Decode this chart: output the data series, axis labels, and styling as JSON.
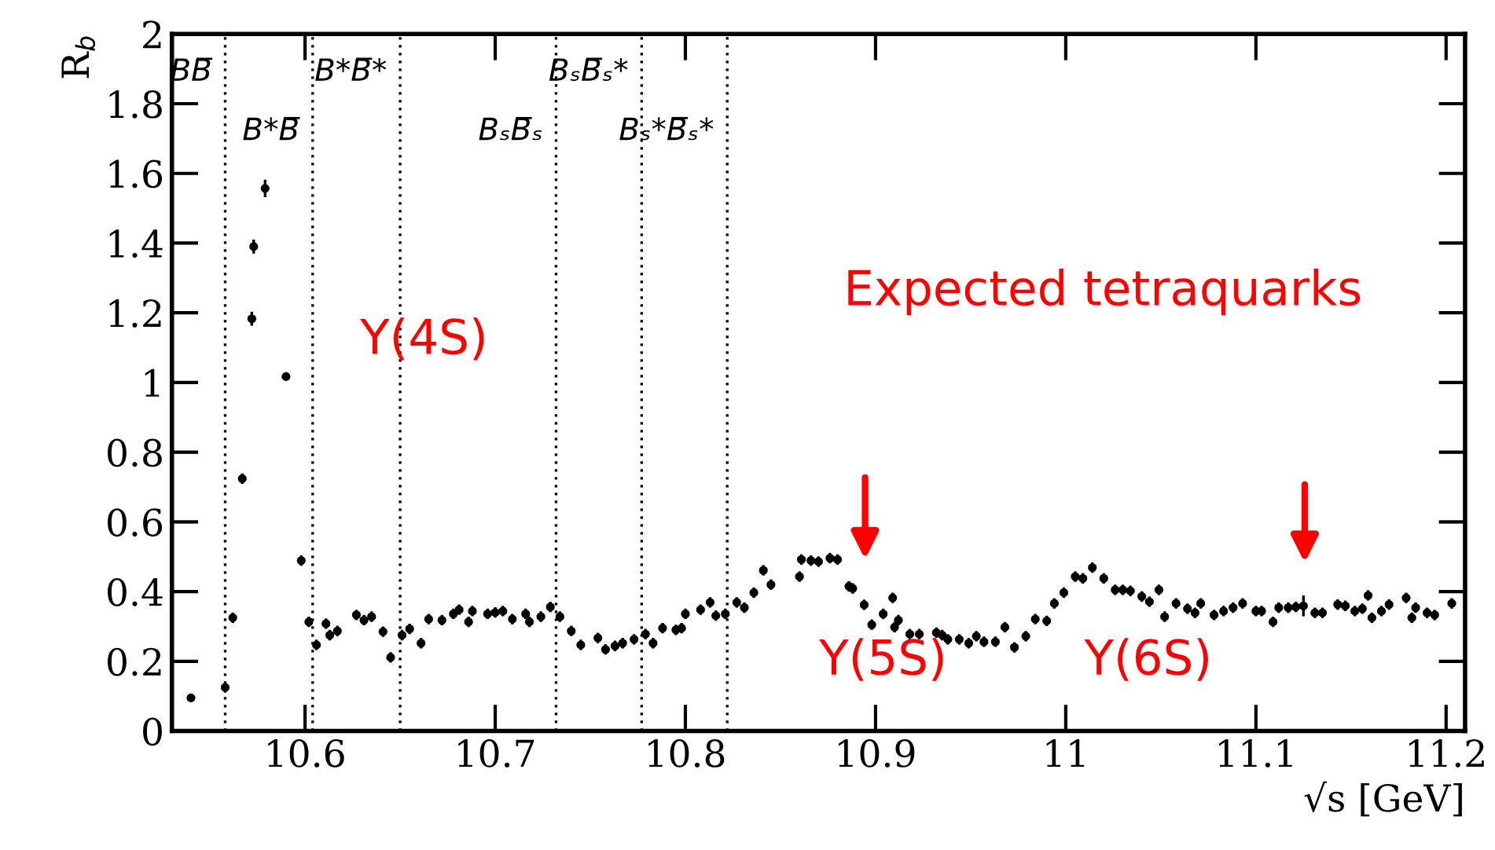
{
  "chart_data": {
    "type": "scatter",
    "xlabel": "√s [GeV]",
    "ylabel": "R$_{b}$",
    "xlim": [
      10.53,
      11.21
    ],
    "ylim": [
      0,
      2
    ],
    "xticks": [
      10.6,
      10.7,
      10.8,
      10.9,
      11,
      11.1,
      11.2
    ],
    "yticks": [
      0,
      0.2,
      0.4,
      0.6,
      0.8,
      1,
      1.2,
      1.4,
      1.6,
      1.8,
      2
    ],
    "grid": false,
    "marker": "circle",
    "series": [
      {
        "color": "#000000",
        "x": [
          10.54,
          10.558,
          10.562,
          10.567,
          10.572,
          10.573,
          10.579,
          10.59,
          10.598,
          10.602,
          10.606,
          10.611,
          10.613,
          10.617,
          10.627,
          10.631,
          10.635,
          10.641,
          10.645,
          10.651,
          10.655,
          10.661,
          10.665,
          10.672,
          10.678,
          10.681,
          10.686,
          10.688,
          10.696,
          10.7,
          10.704,
          10.709,
          10.716,
          10.718,
          10.724,
          10.729,
          10.734,
          10.74,
          10.745,
          10.754,
          10.758,
          10.763,
          10.767,
          10.773,
          10.779,
          10.783,
          10.788,
          10.795,
          10.798,
          10.8,
          10.808,
          10.813,
          10.816,
          10.821,
          10.827,
          10.831,
          10.836,
          10.841,
          10.845,
          10.86,
          10.861,
          10.866,
          10.87,
          10.876,
          10.88,
          10.886,
          10.888,
          10.894,
          10.898,
          10.904,
          10.909,
          10.91,
          10.912,
          10.918,
          10.923,
          10.932,
          10.935,
          10.938,
          10.944,
          10.949,
          10.953,
          10.957,
          10.963,
          10.968,
          10.973,
          10.979,
          10.984,
          10.99,
          10.994,
          10.999,
          11.005,
          11.009,
          11.014,
          11.02,
          11.026,
          11.03,
          11.034,
          11.04,
          11.044,
          11.049,
          11.052,
          11.058,
          11.064,
          11.068,
          11.071,
          11.078,
          11.083,
          11.088,
          11.093,
          11.1,
          11.103,
          11.109,
          11.112,
          11.117,
          11.121,
          11.125,
          11.131,
          11.135,
          11.143,
          11.147,
          11.152,
          11.156,
          11.159,
          11.161,
          11.166,
          11.17,
          11.179,
          11.182,
          11.184,
          11.19,
          11.194,
          11.203
        ],
        "values": [
          0.095,
          0.125,
          0.325,
          0.724,
          1.183,
          1.39,
          1.557,
          1.017,
          0.489,
          0.313,
          0.247,
          0.308,
          0.275,
          0.287,
          0.333,
          0.318,
          0.328,
          0.285,
          0.211,
          0.275,
          0.293,
          0.252,
          0.321,
          0.318,
          0.336,
          0.348,
          0.313,
          0.344,
          0.336,
          0.34,
          0.344,
          0.321,
          0.336,
          0.313,
          0.328,
          0.356,
          0.328,
          0.287,
          0.247,
          0.267,
          0.234,
          0.244,
          0.252,
          0.263,
          0.278,
          0.252,
          0.295,
          0.29,
          0.295,
          0.336,
          0.348,
          0.369,
          0.331,
          0.336,
          0.369,
          0.354,
          0.397,
          0.461,
          0.42,
          0.443,
          0.492,
          0.489,
          0.486,
          0.496,
          0.492,
          0.415,
          0.409,
          0.362,
          0.305,
          0.336,
          0.382,
          0.298,
          0.318,
          0.278,
          0.278,
          0.282,
          0.275,
          0.263,
          0.263,
          0.252,
          0.272,
          0.256,
          0.256,
          0.298,
          0.24,
          0.272,
          0.321,
          0.316,
          0.366,
          0.397,
          0.443,
          0.438,
          0.469,
          0.438,
          0.405,
          0.405,
          0.402,
          0.386,
          0.371,
          0.405,
          0.328,
          0.366,
          0.351,
          0.339,
          0.366,
          0.333,
          0.344,
          0.354,
          0.366,
          0.344,
          0.344,
          0.313,
          0.354,
          0.354,
          0.356,
          0.359,
          0.339,
          0.339,
          0.363,
          0.359,
          0.344,
          0.351,
          0.389,
          0.325,
          0.344,
          0.363,
          0.382,
          0.325,
          0.354,
          0.339,
          0.333,
          0.366
        ],
        "errors": [
          0.01,
          0.015,
          0.015,
          0.015,
          0.02,
          0.02,
          0.025,
          0.01,
          0.015,
          0.015,
          0.015,
          0.015,
          0.015,
          0.015,
          0.015,
          0.015,
          0.015,
          0.015,
          0.015,
          0.015,
          0.015,
          0.015,
          0.015,
          0.015,
          0.015,
          0.015,
          0.015,
          0.015,
          0.015,
          0.015,
          0.015,
          0.015,
          0.015,
          0.015,
          0.015,
          0.015,
          0.015,
          0.015,
          0.015,
          0.015,
          0.015,
          0.015,
          0.015,
          0.015,
          0.015,
          0.015,
          0.015,
          0.015,
          0.015,
          0.015,
          0.015,
          0.015,
          0.015,
          0.015,
          0.015,
          0.015,
          0.015,
          0.015,
          0.015,
          0.015,
          0.015,
          0.015,
          0.015,
          0.015,
          0.015,
          0.015,
          0.015,
          0.015,
          0.015,
          0.015,
          0.015,
          0.015,
          0.015,
          0.015,
          0.015,
          0.015,
          0.015,
          0.015,
          0.015,
          0.015,
          0.015,
          0.015,
          0.015,
          0.015,
          0.015,
          0.015,
          0.015,
          0.015,
          0.015,
          0.015,
          0.015,
          0.015,
          0.015,
          0.015,
          0.015,
          0.015,
          0.015,
          0.015,
          0.015,
          0.015,
          0.015,
          0.015,
          0.015,
          0.015,
          0.015,
          0.015,
          0.015,
          0.015,
          0.015,
          0.015,
          0.015,
          0.015,
          0.015,
          0.015,
          0.015,
          0.03,
          0.015,
          0.015,
          0.015,
          0.015,
          0.015,
          0.015,
          0.015,
          0.015,
          0.015,
          0.015,
          0.015,
          0.015,
          0.015,
          0.015,
          0.015,
          0.015
        ]
      }
    ],
    "ref_lines": [
      {
        "axis": "x",
        "value": 10.558,
        "label": "BB̅",
        "color": "#000000",
        "line_style": "dotted"
      },
      {
        "axis": "x",
        "value": 10.604,
        "label": "B*B̅",
        "color": "#000000",
        "line_style": "dotted"
      },
      {
        "axis": "x",
        "value": 10.65,
        "label": "B*B̅*",
        "color": "#000000",
        "line_style": "dotted"
      },
      {
        "axis": "x",
        "value": 10.732,
        "label": "BₛB̅ₛ",
        "color": "#000000",
        "line_style": "dotted"
      },
      {
        "axis": "x",
        "value": 10.777,
        "label": "BₛB̅ₛ*",
        "color": "#000000",
        "line_style": "dotted"
      },
      {
        "axis": "x",
        "value": 10.822,
        "label": "Bₛ*B̅ₛ*",
        "color": "#000000",
        "line_style": "dotted"
      }
    ],
    "annotations": [
      "Υ(4S)",
      "Expected tetraquarks",
      "Υ(5S)",
      "Υ(6S)"
    ]
  }
}
